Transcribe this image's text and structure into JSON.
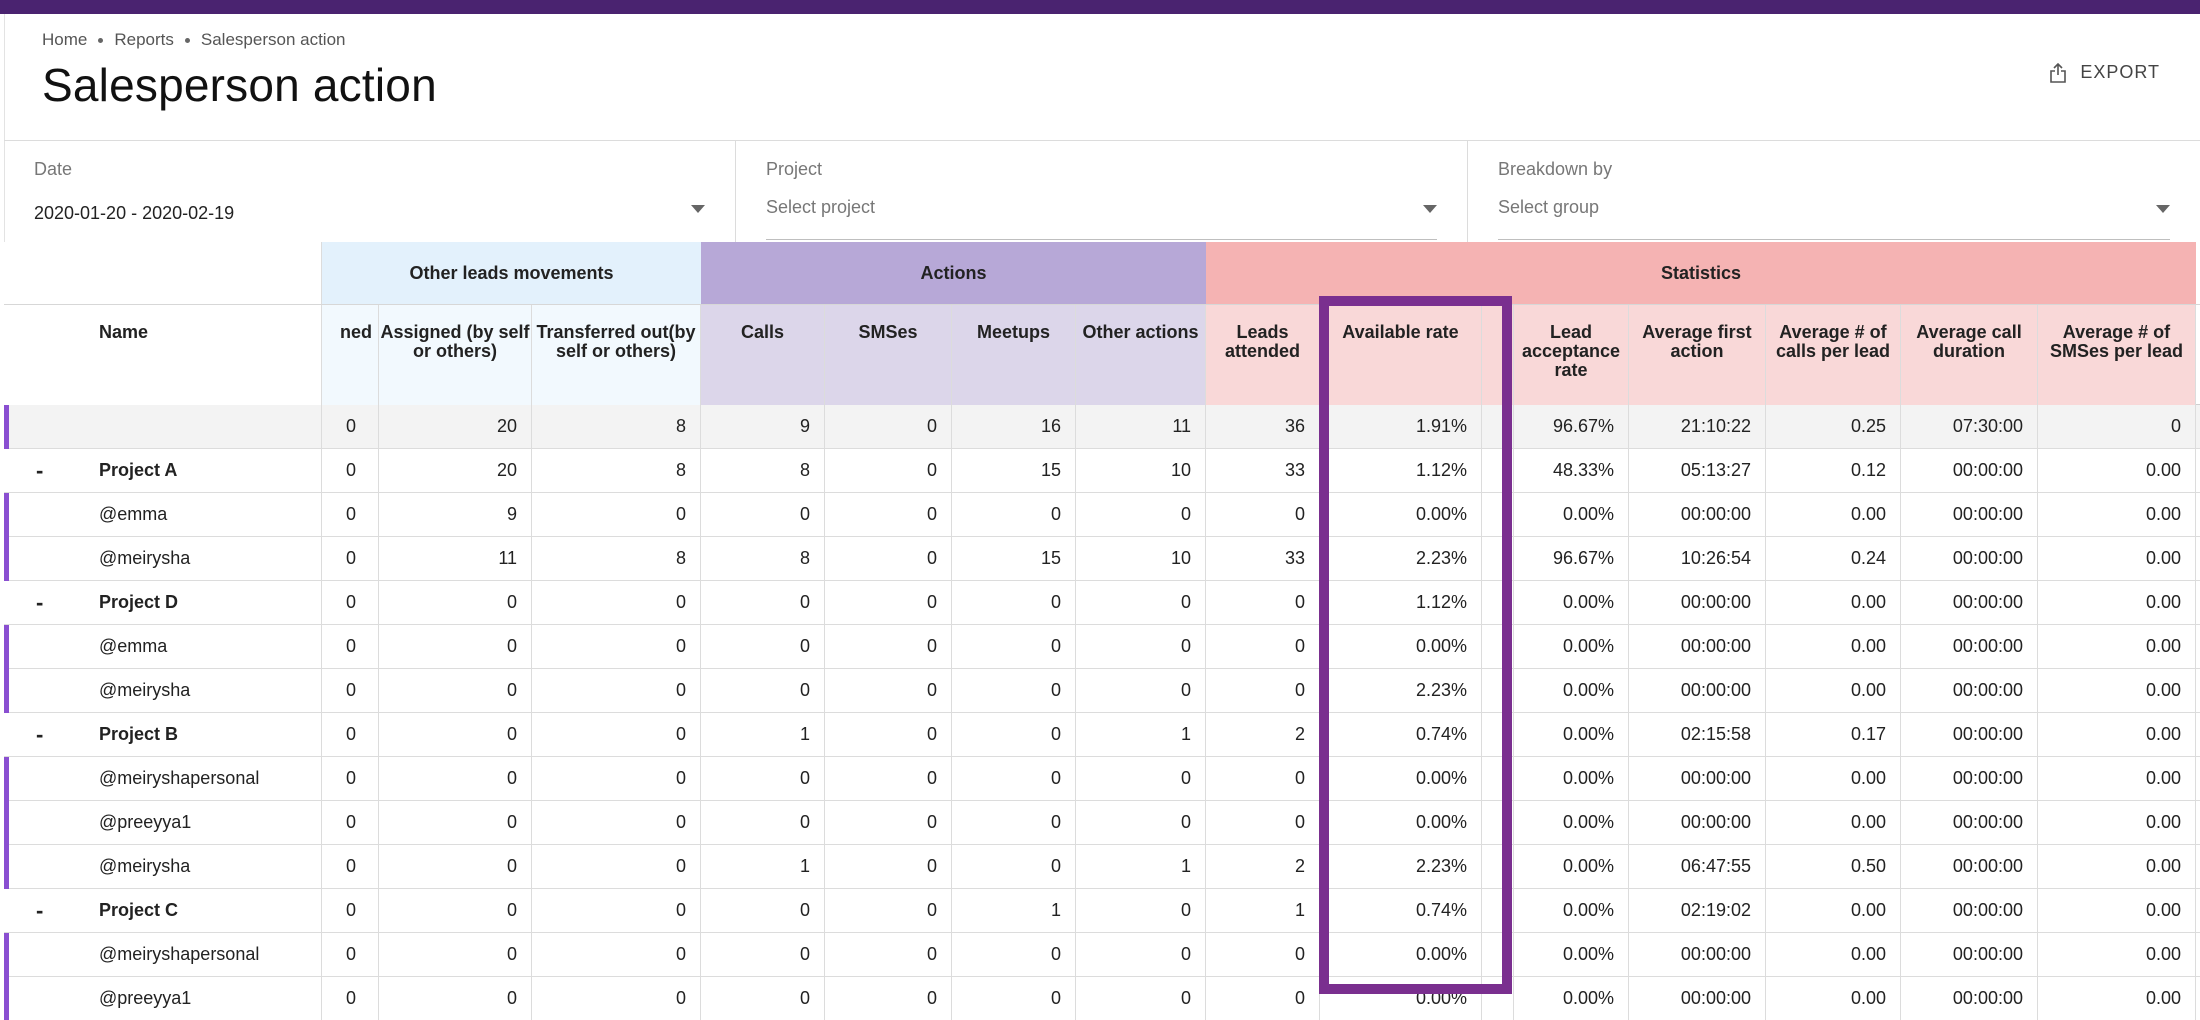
{
  "breadcrumb": [
    "Home",
    "Reports",
    "Salesperson action"
  ],
  "page_title": "Salesperson action",
  "export_label": "EXPORT",
  "filters": {
    "date": {
      "label": "Date",
      "value": "2020-01-20 - 2020-02-19"
    },
    "project": {
      "label": "Project",
      "placeholder": "Select project"
    },
    "breakdown": {
      "label": "Breakdown by",
      "placeholder": "Select group"
    }
  },
  "groups": {
    "other_leads": "Other leads movements",
    "actions": "Actions",
    "statistics": "Statistics"
  },
  "columns": [
    "Name",
    "ned",
    "Assigned (by self or others)",
    "Transferred out(by self or others)",
    "Calls",
    "SMSes",
    "Meetups",
    "Other actions",
    "Leads attended",
    "Available rate",
    "",
    "Lead acceptance rate",
    "Average first action",
    "Average # of calls per lead",
    "Average call duration",
    "Average # of SMSes per lead"
  ],
  "colors": {
    "topbar": "#4a2370",
    "other_leads_bg": "#e3f1fc",
    "actions_bg": "#b7a8d7",
    "statistics_bg": "#f5b3b3",
    "highlight": "#7a2f8f",
    "indicator": "#8a4fd1"
  },
  "rows": [
    {
      "type": "total",
      "toggle": "",
      "name": "",
      "values": [
        "0",
        "20",
        "8",
        "9",
        "0",
        "16",
        "11",
        "36",
        "1.91%",
        "",
        "96.67%",
        "21:10:22",
        "0.25",
        "07:30:00",
        "0"
      ]
    },
    {
      "type": "project",
      "toggle": "-",
      "name": "Project A",
      "values": [
        "0",
        "20",
        "8",
        "8",
        "0",
        "15",
        "10",
        "33",
        "1.12%",
        "",
        "48.33%",
        "05:13:27",
        "0.12",
        "00:00:00",
        "0.00"
      ]
    },
    {
      "type": "user",
      "toggle": "",
      "name": "@emma",
      "values": [
        "0",
        "9",
        "0",
        "0",
        "0",
        "0",
        "0",
        "0",
        "0.00%",
        "",
        "0.00%",
        "00:00:00",
        "0.00",
        "00:00:00",
        "0.00"
      ]
    },
    {
      "type": "user",
      "toggle": "",
      "name": "@meirysha",
      "values": [
        "0",
        "11",
        "8",
        "8",
        "0",
        "15",
        "10",
        "33",
        "2.23%",
        "",
        "96.67%",
        "10:26:54",
        "0.24",
        "00:00:00",
        "0.00"
      ]
    },
    {
      "type": "project",
      "toggle": "-",
      "name": "Project D",
      "values": [
        "0",
        "0",
        "0",
        "0",
        "0",
        "0",
        "0",
        "0",
        "1.12%",
        "",
        "0.00%",
        "00:00:00",
        "0.00",
        "00:00:00",
        "0.00"
      ]
    },
    {
      "type": "user",
      "toggle": "",
      "name": "@emma",
      "values": [
        "0",
        "0",
        "0",
        "0",
        "0",
        "0",
        "0",
        "0",
        "0.00%",
        "",
        "0.00%",
        "00:00:00",
        "0.00",
        "00:00:00",
        "0.00"
      ]
    },
    {
      "type": "user",
      "toggle": "",
      "name": "@meirysha",
      "values": [
        "0",
        "0",
        "0",
        "0",
        "0",
        "0",
        "0",
        "0",
        "2.23%",
        "",
        "0.00%",
        "00:00:00",
        "0.00",
        "00:00:00",
        "0.00"
      ]
    },
    {
      "type": "project",
      "toggle": "-",
      "name": "Project B",
      "values": [
        "0",
        "0",
        "0",
        "1",
        "0",
        "0",
        "1",
        "2",
        "0.74%",
        "",
        "0.00%",
        "02:15:58",
        "0.17",
        "00:00:00",
        "0.00"
      ]
    },
    {
      "type": "user",
      "toggle": "",
      "name": "@meiryshapersonal",
      "values": [
        "0",
        "0",
        "0",
        "0",
        "0",
        "0",
        "0",
        "0",
        "0.00%",
        "",
        "0.00%",
        "00:00:00",
        "0.00",
        "00:00:00",
        "0.00"
      ]
    },
    {
      "type": "user",
      "toggle": "",
      "name": "@preeyya1",
      "values": [
        "0",
        "0",
        "0",
        "0",
        "0",
        "0",
        "0",
        "0",
        "0.00%",
        "",
        "0.00%",
        "00:00:00",
        "0.00",
        "00:00:00",
        "0.00"
      ]
    },
    {
      "type": "user",
      "toggle": "",
      "name": "@meirysha",
      "values": [
        "0",
        "0",
        "0",
        "1",
        "0",
        "0",
        "1",
        "2",
        "2.23%",
        "",
        "0.00%",
        "06:47:55",
        "0.50",
        "00:00:00",
        "0.00"
      ]
    },
    {
      "type": "project",
      "toggle": "-",
      "name": "Project C",
      "values": [
        "0",
        "0",
        "0",
        "0",
        "0",
        "1",
        "0",
        "1",
        "0.74%",
        "",
        "0.00%",
        "02:19:02",
        "0.00",
        "00:00:00",
        "0.00"
      ]
    },
    {
      "type": "user",
      "toggle": "",
      "name": "@meiryshapersonal",
      "values": [
        "0",
        "0",
        "0",
        "0",
        "0",
        "0",
        "0",
        "0",
        "0.00%",
        "",
        "0.00%",
        "00:00:00",
        "0.00",
        "00:00:00",
        "0.00"
      ]
    },
    {
      "type": "user",
      "toggle": "",
      "name": "@preeyya1",
      "values": [
        "0",
        "0",
        "0",
        "0",
        "0",
        "0",
        "0",
        "0",
        "0.00%",
        "",
        "0.00%",
        "00:00:00",
        "0.00",
        "00:00:00",
        "0.00"
      ]
    }
  ]
}
